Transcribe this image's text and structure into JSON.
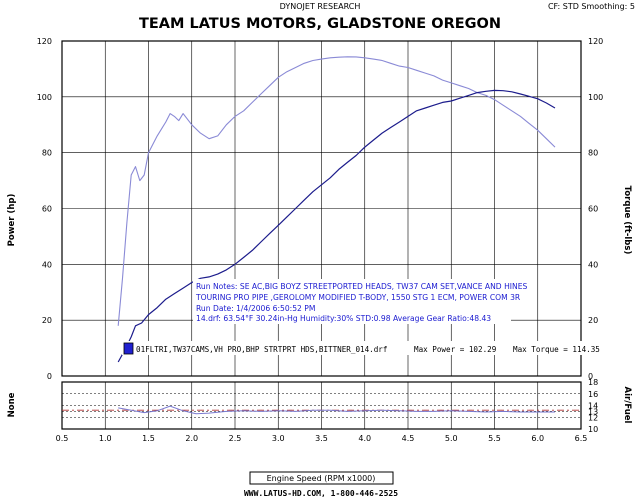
{
  "header": {
    "brand": "DYNOJET RESEARCH",
    "settings": "CF: STD  Smoothing: 5",
    "title": "TEAM LATUS MOTORS, GLADSTONE OREGON"
  },
  "colors": {
    "power_line": "#1c1c8c",
    "torque_line": "#8a8ad6",
    "notes_text": "#1a1ad0",
    "afr_line": "#7a7ad0",
    "afr_reference_line": "#b03030",
    "legend_swatch": "#2020d0",
    "grid": "#000000"
  },
  "notes": {
    "line1": "Run Notes: SE AC,BIG BOYZ STREETPORTED HEADS, TW37 CAM SET,VANCE AND HINES",
    "line2": "TOURING PRO PIPE ,GEROLOMY MODIFIED T-BODY, 1550 STG 1 ECM, POWER COM 3R",
    "line3": "Run Date:  1/4/2006 6:50:52 PM",
    "line4": "14.drf: 63.54°F 30.24in-Hg Humidity:30% STD:0.98 Average Gear Ratio:48.43"
  },
  "legend": {
    "run_name": "01FLTRI,TW37CAMS,VH PRO,BHP STRTPRT HDS,BITTNER_014.drf",
    "max_power": "Max Power = 102.29",
    "max_torque": "Max Torque = 114.35"
  },
  "footer": {
    "xlabel": "Engine Speed (RPM x1000)",
    "website": "WWW.LATUS-HD.COM, 1-800-446-2525"
  },
  "chart_data": [
    {
      "type": "line",
      "panel": "main",
      "ylabel_left": "Power (hp)",
      "ylabel_right": "Torque (ft-lbs)",
      "xlim": [
        0.5,
        6.5
      ],
      "ylim": [
        0,
        120
      ],
      "x_ticks": [
        "0.5",
        "1.0",
        "1.5",
        "2.0",
        "2.5",
        "3.0",
        "3.5",
        "4.0",
        "4.5",
        "5.0",
        "5.5",
        "6.0",
        "6.5"
      ],
      "y_ticks": [
        "0",
        "20",
        "40",
        "60",
        "80",
        "100",
        "120"
      ],
      "grid": true,
      "series": [
        {
          "key": "power",
          "axis": "left",
          "x": [
            1.15,
            1.22,
            1.3,
            1.35,
            1.42,
            1.5,
            1.6,
            1.7,
            1.8,
            1.9,
            2.0,
            2.1,
            2.2,
            2.3,
            2.4,
            2.5,
            2.6,
            2.7,
            2.8,
            2.9,
            3.0,
            3.1,
            3.2,
            3.3,
            3.4,
            3.5,
            3.6,
            3.7,
            3.8,
            3.9,
            4.0,
            4.1,
            4.2,
            4.3,
            4.4,
            4.5,
            4.6,
            4.7,
            4.8,
            4.9,
            5.0,
            5.1,
            5.2,
            5.3,
            5.4,
            5.5,
            5.6,
            5.7,
            5.8,
            5.9,
            6.0,
            6.1,
            6.2
          ],
          "y": [
            5,
            9,
            14,
            18,
            19,
            22,
            24.5,
            27.5,
            29.5,
            31.5,
            33.5,
            35,
            35.5,
            36.5,
            38,
            40,
            42.5,
            45,
            48,
            51,
            54,
            57,
            60,
            63,
            66,
            68.5,
            71,
            74,
            76.5,
            79,
            82,
            84.5,
            87,
            89,
            91,
            93,
            95,
            96,
            97,
            98,
            98.5,
            99.5,
            100.5,
            101.5,
            102,
            102.29,
            102.2,
            101.8,
            101,
            100.2,
            99.3,
            97.8,
            96
          ]
        },
        {
          "key": "torque",
          "axis": "right",
          "x": [
            1.15,
            1.2,
            1.25,
            1.3,
            1.35,
            1.4,
            1.45,
            1.5,
            1.6,
            1.7,
            1.75,
            1.8,
            1.85,
            1.9,
            2.0,
            2.1,
            2.2,
            2.3,
            2.4,
            2.5,
            2.6,
            2.7,
            2.8,
            2.9,
            3.0,
            3.1,
            3.2,
            3.3,
            3.4,
            3.5,
            3.6,
            3.7,
            3.8,
            3.9,
            4.0,
            4.1,
            4.2,
            4.3,
            4.4,
            4.5,
            4.6,
            4.7,
            4.8,
            4.9,
            5.0,
            5.1,
            5.2,
            5.3,
            5.4,
            5.5,
            5.6,
            5.7,
            5.8,
            5.9,
            6.0,
            6.1,
            6.2
          ],
          "y": [
            18,
            35,
            55,
            72,
            75,
            70,
            72,
            80,
            86,
            91,
            94,
            93,
            91.5,
            94,
            90,
            87,
            85,
            86,
            90,
            93,
            95,
            98,
            101,
            104,
            107,
            109,
            110.5,
            112,
            113,
            113.5,
            114,
            114.2,
            114.35,
            114.3,
            114,
            113.5,
            113,
            112,
            111,
            110.5,
            109.5,
            108.5,
            107.5,
            106,
            105,
            104,
            103,
            101.5,
            100.5,
            99,
            97,
            95,
            93,
            90.5,
            88,
            85,
            82
          ]
        }
      ]
    },
    {
      "type": "line",
      "panel": "air-fuel",
      "ylabel_left": "None",
      "ylabel_right": "Air/Fuel",
      "xlim": [
        0.5,
        6.5
      ],
      "ylim": [
        10,
        18
      ],
      "y_ticks": [
        "10",
        "12",
        "13",
        "14",
        "16",
        "18"
      ],
      "grid": true,
      "reference_value": 13.2,
      "series": [
        {
          "key": "afr",
          "x": [
            1.15,
            1.3,
            1.45,
            1.6,
            1.75,
            1.9,
            2.05,
            2.2,
            2.4,
            2.6,
            2.8,
            3.0,
            3.2,
            3.4,
            3.6,
            3.8,
            4.0,
            4.2,
            4.4,
            4.6,
            4.8,
            5.0,
            5.2,
            5.4,
            5.6,
            5.8,
            6.0,
            6.2
          ],
          "y": [
            13.6,
            13.2,
            12.8,
            13.1,
            13.9,
            13.1,
            12.6,
            12.7,
            13.0,
            13.1,
            13.0,
            13.1,
            13.0,
            13.2,
            13.2,
            13.0,
            13.1,
            13.2,
            13.1,
            13.0,
            13.0,
            13.1,
            13.0,
            12.9,
            13.0,
            12.9,
            12.9,
            12.9
          ]
        }
      ]
    }
  ]
}
